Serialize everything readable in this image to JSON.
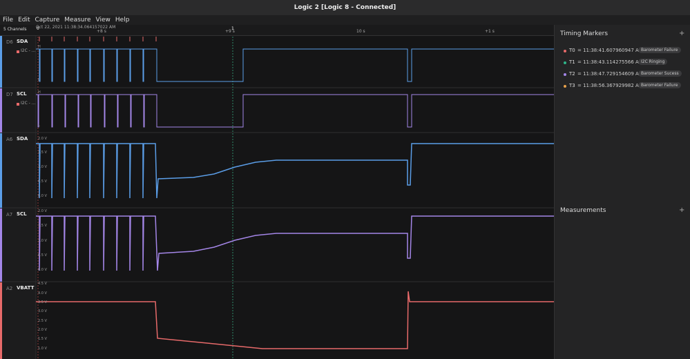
{
  "window": {
    "title": "Logic 2 [Logic 8 - Connected]"
  },
  "menu": [
    "File",
    "Edit",
    "Capture",
    "Measure",
    "View",
    "Help"
  ],
  "toolbar": {
    "channels": "5 Channels"
  },
  "ruler": {
    "timestamp": "Oct 22, 2021 11:38:34.064157022 AM",
    "labels": [
      {
        "text": "+8 s"
      },
      {
        "text": "+9 s"
      },
      {
        "text": "10 s"
      },
      {
        "text": "+1 s"
      }
    ],
    "markers": [
      "0",
      "1"
    ]
  },
  "channels": [
    {
      "id": "D6",
      "name": "SDA",
      "analyzer": "I2C - ...",
      "scale": [
        "H",
        "L"
      ]
    },
    {
      "id": "D7",
      "name": "SCL",
      "analyzer": "I2C - ...",
      "scale": [
        "H",
        "L"
      ]
    },
    {
      "id": "A6",
      "name": "SDA",
      "scale": [
        "2.0 V",
        "1.5 V",
        "1.0 V",
        "0.5 V",
        "0.0 V"
      ]
    },
    {
      "id": "A7",
      "name": "SCL",
      "scale": [
        "2.0 V",
        "1.5 V",
        "1.0 V",
        "0.5 V",
        "0.0 V"
      ]
    },
    {
      "id": "A2",
      "name": "VBATT",
      "scale": [
        "4.5 V",
        "4.0 V",
        "3.5 V",
        "3.0 V",
        "2.5 V",
        "2.0 V",
        "1.5 V",
        "1.0 V"
      ]
    }
  ],
  "timing_markers": {
    "title": "Timing Markers",
    "add": "+",
    "items": [
      {
        "id": "T0",
        "time": "= 11:38:41.607960947 AM",
        "label": "Barometer Failure"
      },
      {
        "id": "T1",
        "time": "= 11:38:43.114275566 AM",
        "label": "I2C Ringing"
      },
      {
        "id": "T2",
        "time": "= 11:38:47.729154609 AM",
        "label": "Barometer Sucess"
      },
      {
        "id": "T3",
        "time": "= 11:38:56.367929982 AM",
        "label": "Barometer Failure"
      }
    ]
  },
  "measurements": {
    "title": "Measurements",
    "add": "+"
  }
}
